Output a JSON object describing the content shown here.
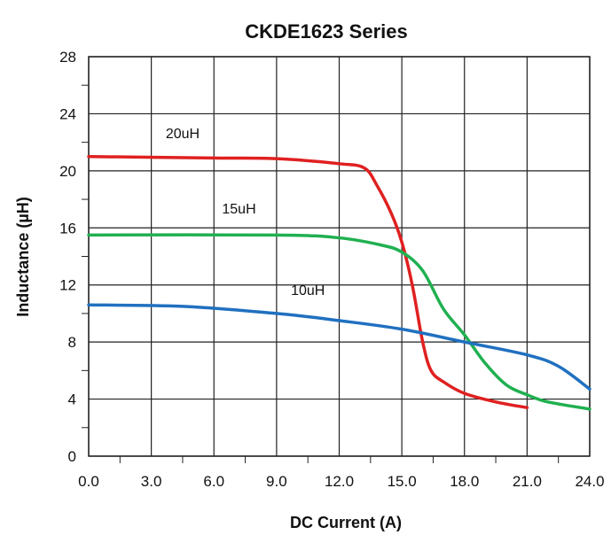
{
  "chart_data": {
    "type": "line",
    "title": "CKDE1623 Series",
    "xlabel": "DC Current (A)",
    "ylabel": "Inductance (µH)",
    "xlim": [
      0,
      24
    ],
    "ylim": [
      0,
      28
    ],
    "xticks": [
      "0.0",
      "3.0",
      "6.0",
      "9.0",
      "12.0",
      "15.0",
      "18.0",
      "21.0",
      "24.0"
    ],
    "yticks": [
      "0",
      "4",
      "8",
      "12",
      "16",
      "20",
      "24",
      "28"
    ],
    "grid": true,
    "series": [
      {
        "name": "20uH",
        "color": "#e02020",
        "label_at": [
          4.5,
          22.3
        ],
        "points": [
          [
            0,
            21
          ],
          [
            6,
            20.9
          ],
          [
            9,
            20.85
          ],
          [
            12,
            20.5
          ],
          [
            13.2,
            20.2
          ],
          [
            13.8,
            19
          ],
          [
            14.5,
            17
          ],
          [
            15,
            15
          ],
          [
            15.5,
            12
          ],
          [
            16,
            8
          ],
          [
            16.4,
            6
          ],
          [
            17,
            5.2
          ],
          [
            18,
            4.4
          ],
          [
            19.5,
            3.8
          ],
          [
            21,
            3.4
          ]
        ]
      },
      {
        "name": "15uH",
        "color": "#20b050",
        "label_at": [
          7.2,
          17
        ],
        "points": [
          [
            0,
            15.5
          ],
          [
            9,
            15.5
          ],
          [
            12,
            15.3
          ],
          [
            14,
            14.8
          ],
          [
            15,
            14.3
          ],
          [
            16,
            13
          ],
          [
            17,
            10.3
          ],
          [
            18,
            8.5
          ],
          [
            19,
            6.5
          ],
          [
            20,
            5
          ],
          [
            21,
            4.3
          ],
          [
            22,
            3.8
          ],
          [
            24,
            3.3
          ]
        ]
      },
      {
        "name": "10uH",
        "color": "#2070c0",
        "label_at": [
          10.5,
          11.3
        ],
        "points": [
          [
            0,
            10.6
          ],
          [
            4.5,
            10.5
          ],
          [
            9,
            10
          ],
          [
            12,
            9.5
          ],
          [
            15,
            8.9
          ],
          [
            18,
            8
          ],
          [
            21,
            7.1
          ],
          [
            22.5,
            6.3
          ],
          [
            24,
            4.7
          ]
        ]
      }
    ]
  }
}
